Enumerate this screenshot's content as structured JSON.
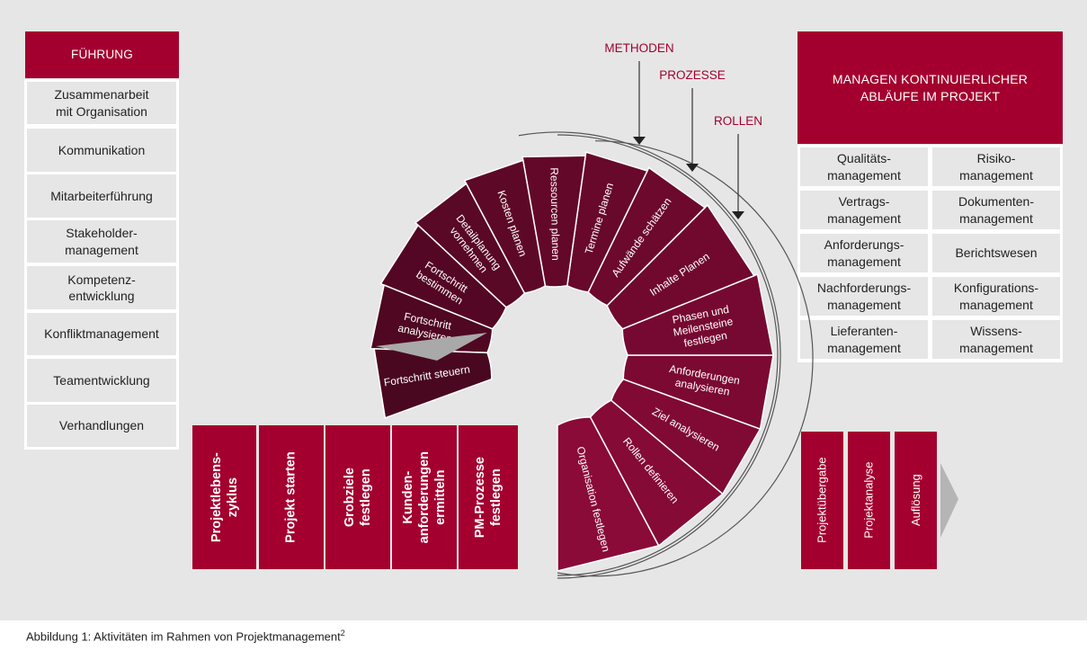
{
  "left_panel": {
    "header": "FÜHRUNG",
    "items": [
      {
        "line1": "Zusammenarbeit",
        "line2": "mit Organisation"
      },
      {
        "line1": "Kommunikation",
        "line2": ""
      },
      {
        "line1": "Mitarbeiterführung",
        "line2": ""
      },
      {
        "line1": "Stakeholder-",
        "line2": "management"
      },
      {
        "line1": "Kompetenz-",
        "line2": "entwicklung"
      },
      {
        "line1": "Konfliktmanagement",
        "line2": ""
      },
      {
        "line1": "Teamentwicklung",
        "line2": ""
      },
      {
        "line1": "Verhandlungen",
        "line2": ""
      }
    ]
  },
  "right_panel": {
    "header_line1": "MANAGEN KONTINUIERLICHER",
    "header_line2": "ABLÄUFE IM PROJEKT",
    "items": [
      {
        "line1": "Qualitäts-",
        "line2": "management"
      },
      {
        "line1": "Risiko-",
        "line2": "management"
      },
      {
        "line1": "Vertrags-",
        "line2": "management"
      },
      {
        "line1": "Dokumenten-",
        "line2": "management"
      },
      {
        "line1": "Anforderungs-",
        "line2": "management"
      },
      {
        "line1": "Berichtswesen",
        "line2": ""
      },
      {
        "line1": "Nachforderungs-",
        "line2": "management"
      },
      {
        "line1": "Konfigurations-",
        "line2": "management"
      },
      {
        "line1": "Lieferanten-",
        "line2": "management"
      },
      {
        "line1": "Wissens-",
        "line2": "management"
      }
    ]
  },
  "pointers": {
    "methods": "METHODEN",
    "processes": "PROZESSE",
    "roles": "ROLLEN"
  },
  "start_phases": [
    {
      "line1": "Projektlebens-",
      "line2": "zyklus"
    },
    {
      "line1": "Projekt starten",
      "line2": ""
    },
    {
      "line1": "Grobziele",
      "line2": "festlegen"
    },
    {
      "line1": "Kunden-",
      "line2": "anforderungen",
      "line3": "ermitteln"
    },
    {
      "line1": "PM-Prozesse",
      "line2": "festlegen"
    }
  ],
  "spiral_segments": [
    {
      "lines": [
        "Organisation festlegen"
      ]
    },
    {
      "lines": [
        "Rollen definieren"
      ]
    },
    {
      "lines": [
        "Ziel analysieren"
      ]
    },
    {
      "lines": [
        "Anforderungen",
        "analysieren"
      ]
    },
    {
      "lines": [
        "Phasen und",
        "Meilensteine",
        "festlegen"
      ]
    },
    {
      "lines": [
        "Inhalte Planen"
      ]
    },
    {
      "lines": [
        "Aufwände schätzen"
      ]
    },
    {
      "lines": [
        "Termine planen"
      ]
    },
    {
      "lines": [
        "Ressourcen planen"
      ]
    },
    {
      "lines": [
        "Kosten planen"
      ]
    },
    {
      "lines": [
        "Detailplanung",
        "vornehmen"
      ]
    },
    {
      "lines": [
        "Fortschritt",
        "bestimmen"
      ]
    },
    {
      "lines": [
        "Fortschritt",
        "analysieren"
      ]
    },
    {
      "lines": [
        "Fortschritt steuern"
      ]
    }
  ],
  "end_phases": [
    {
      "label": "Projektübergabe"
    },
    {
      "label": "Projektanalyse"
    },
    {
      "label": "Auflösung"
    }
  ],
  "caption": {
    "text": "Abbildung 1: Aktivitäten im Rahmen von Projektmanagement",
    "footnote": "2"
  },
  "colors": {
    "header": "#a3002f",
    "box_bg": "#e6e6e6",
    "spiral_dark": "#4a0720",
    "spiral_light": "#8a0a38",
    "arc_line": "#555555"
  }
}
